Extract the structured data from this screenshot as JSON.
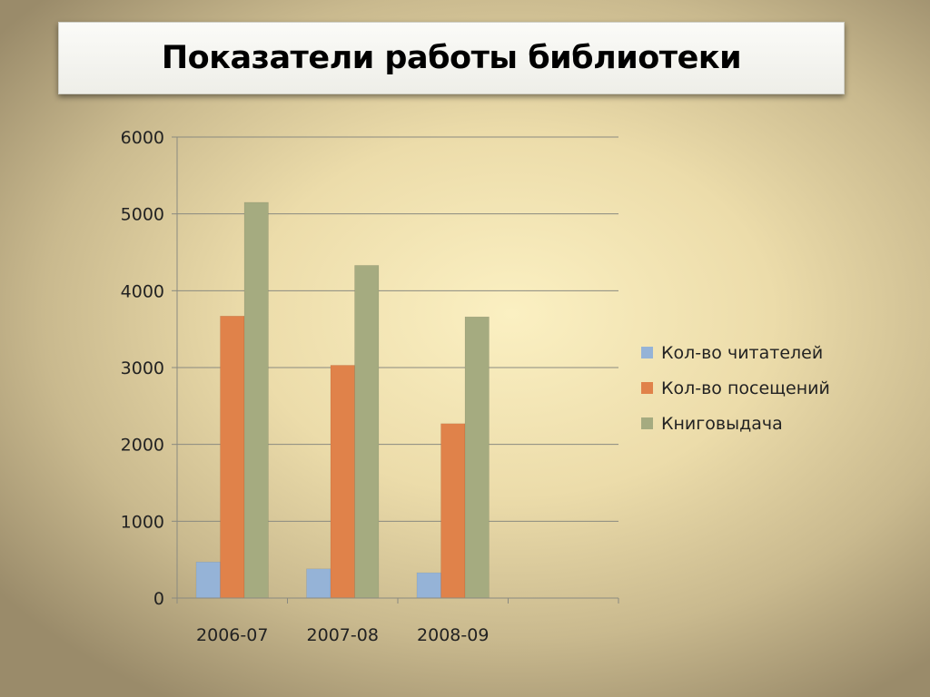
{
  "slide": {
    "title": "Показатели работы библиотеки"
  },
  "chart_data": {
    "type": "bar",
    "title": "",
    "xlabel": "",
    "ylabel": "",
    "categories": [
      "2006-07",
      "2007-08",
      "2008-09",
      ""
    ],
    "series": [
      {
        "name": "Кол-во читателей",
        "color": "#95b3d7",
        "values": [
          470,
          380,
          330,
          null
        ]
      },
      {
        "name": "Кол-во посещений",
        "color": "#e0824a",
        "values": [
          3670,
          3030,
          2270,
          null
        ]
      },
      {
        "name": "Книговыдача",
        "color": "#a5ab80",
        "values": [
          5150,
          4330,
          3660,
          null
        ]
      }
    ],
    "ylim": [
      0,
      6000
    ],
    "yticks": [
      0,
      1000,
      2000,
      3000,
      4000,
      5000,
      6000
    ],
    "grid": true,
    "legend": "right"
  }
}
